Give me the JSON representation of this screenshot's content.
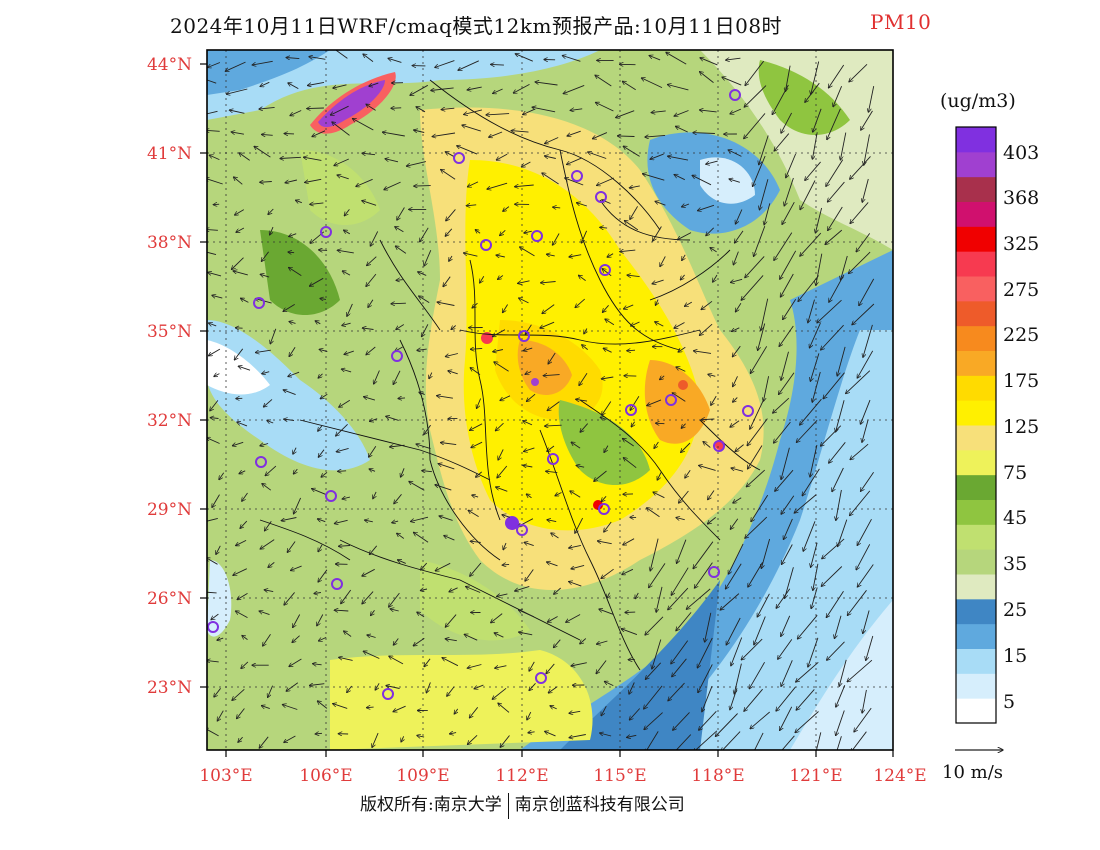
{
  "title": {
    "main": "2024年10月11日WRF/cmaq模式12km预报产品:10月11日08时",
    "variable": "PM10"
  },
  "lat_labels": [
    "44°N",
    "41°N",
    "38°N",
    "35°N",
    "32°N",
    "29°N",
    "26°N",
    "23°N"
  ],
  "lon_labels": [
    "103°E",
    "106°E",
    "109°E",
    "112°E",
    "115°E",
    "118°E",
    "121°E",
    "124°E"
  ],
  "colorbar": {
    "unit": "(ug/m3)",
    "colors": [
      "#ffffff",
      "#d6eefc",
      "#a8dcf6",
      "#5fa9de",
      "#3f86c4",
      "#dfeac0",
      "#b6d67c",
      "#c0e070",
      "#8fc540",
      "#6aa832",
      "#eef25a",
      "#f7e07a",
      "#fff000",
      "#ffdb00",
      "#f9a925",
      "#f78a1e",
      "#ee5b2a",
      "#f96060",
      "#f73a50",
      "#f00000",
      "#d0106e",
      "#a8304c",
      "#a040d0",
      "#8030e0"
    ],
    "tick_labels": [
      "5",
      "15",
      "25",
      "35",
      "45",
      "75",
      "125",
      "175",
      "225",
      "275",
      "325",
      "368",
      "403"
    ]
  },
  "wind_scale_label": "10 m/s",
  "footer": {
    "left": "版权所有:南京大学",
    "right": "南京创蓝科技有限公司"
  }
}
